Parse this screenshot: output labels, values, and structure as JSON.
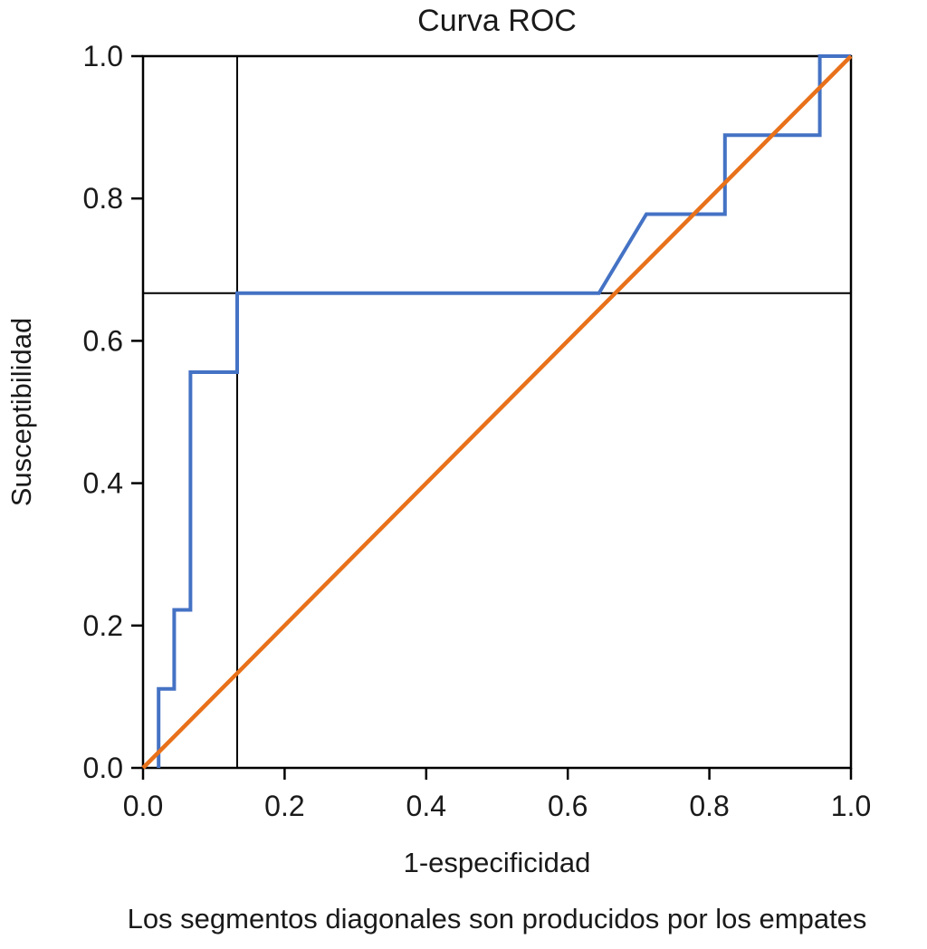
{
  "chart_data": {
    "type": "line",
    "title": "Curva ROC",
    "xlabel": "1-especificidad",
    "ylabel": "Susceptibilidad",
    "footnote": "Los segmentos diagonales son producidos por los empates",
    "xlim": [
      0.0,
      1.0
    ],
    "ylim": [
      0.0,
      1.0
    ],
    "x_ticks": [
      "0.0",
      "0.2",
      "0.4",
      "0.6",
      "0.8",
      "1.0"
    ],
    "x_tick_values": [
      0,
      0.2,
      0.4,
      0.6,
      0.8,
      1.0
    ],
    "y_ticks": [
      "0.0",
      "0.2",
      "0.4",
      "0.6",
      "0.8",
      "1.0"
    ],
    "y_tick_values": [
      0,
      0.2,
      0.4,
      0.6,
      0.8,
      1.0
    ],
    "grid": false,
    "legend": "none",
    "series": [
      {
        "name": "roc-curve",
        "type": "step-line",
        "color": "#4472C4",
        "width": 4,
        "points": [
          [
            0.022,
            0.0
          ],
          [
            0.022,
            0.111
          ],
          [
            0.044,
            0.111
          ],
          [
            0.044,
            0.222
          ],
          [
            0.067,
            0.222
          ],
          [
            0.067,
            0.556
          ],
          [
            0.133,
            0.556
          ],
          [
            0.133,
            0.667
          ],
          [
            0.644,
            0.667
          ],
          [
            0.711,
            0.778
          ],
          [
            0.822,
            0.778
          ],
          [
            0.822,
            0.889
          ],
          [
            0.956,
            0.889
          ],
          [
            0.956,
            1.0
          ],
          [
            1.0,
            1.0
          ]
        ]
      },
      {
        "name": "reference-diagonal",
        "type": "line",
        "color": "#E8711A",
        "width": 4.5,
        "points": [
          [
            0.0,
            0.0
          ],
          [
            1.0,
            1.0
          ]
        ]
      }
    ],
    "reference_lines": {
      "vertical_x": 0.133,
      "horizontal_y": 0.667,
      "color": "#000000",
      "width": 2
    }
  }
}
